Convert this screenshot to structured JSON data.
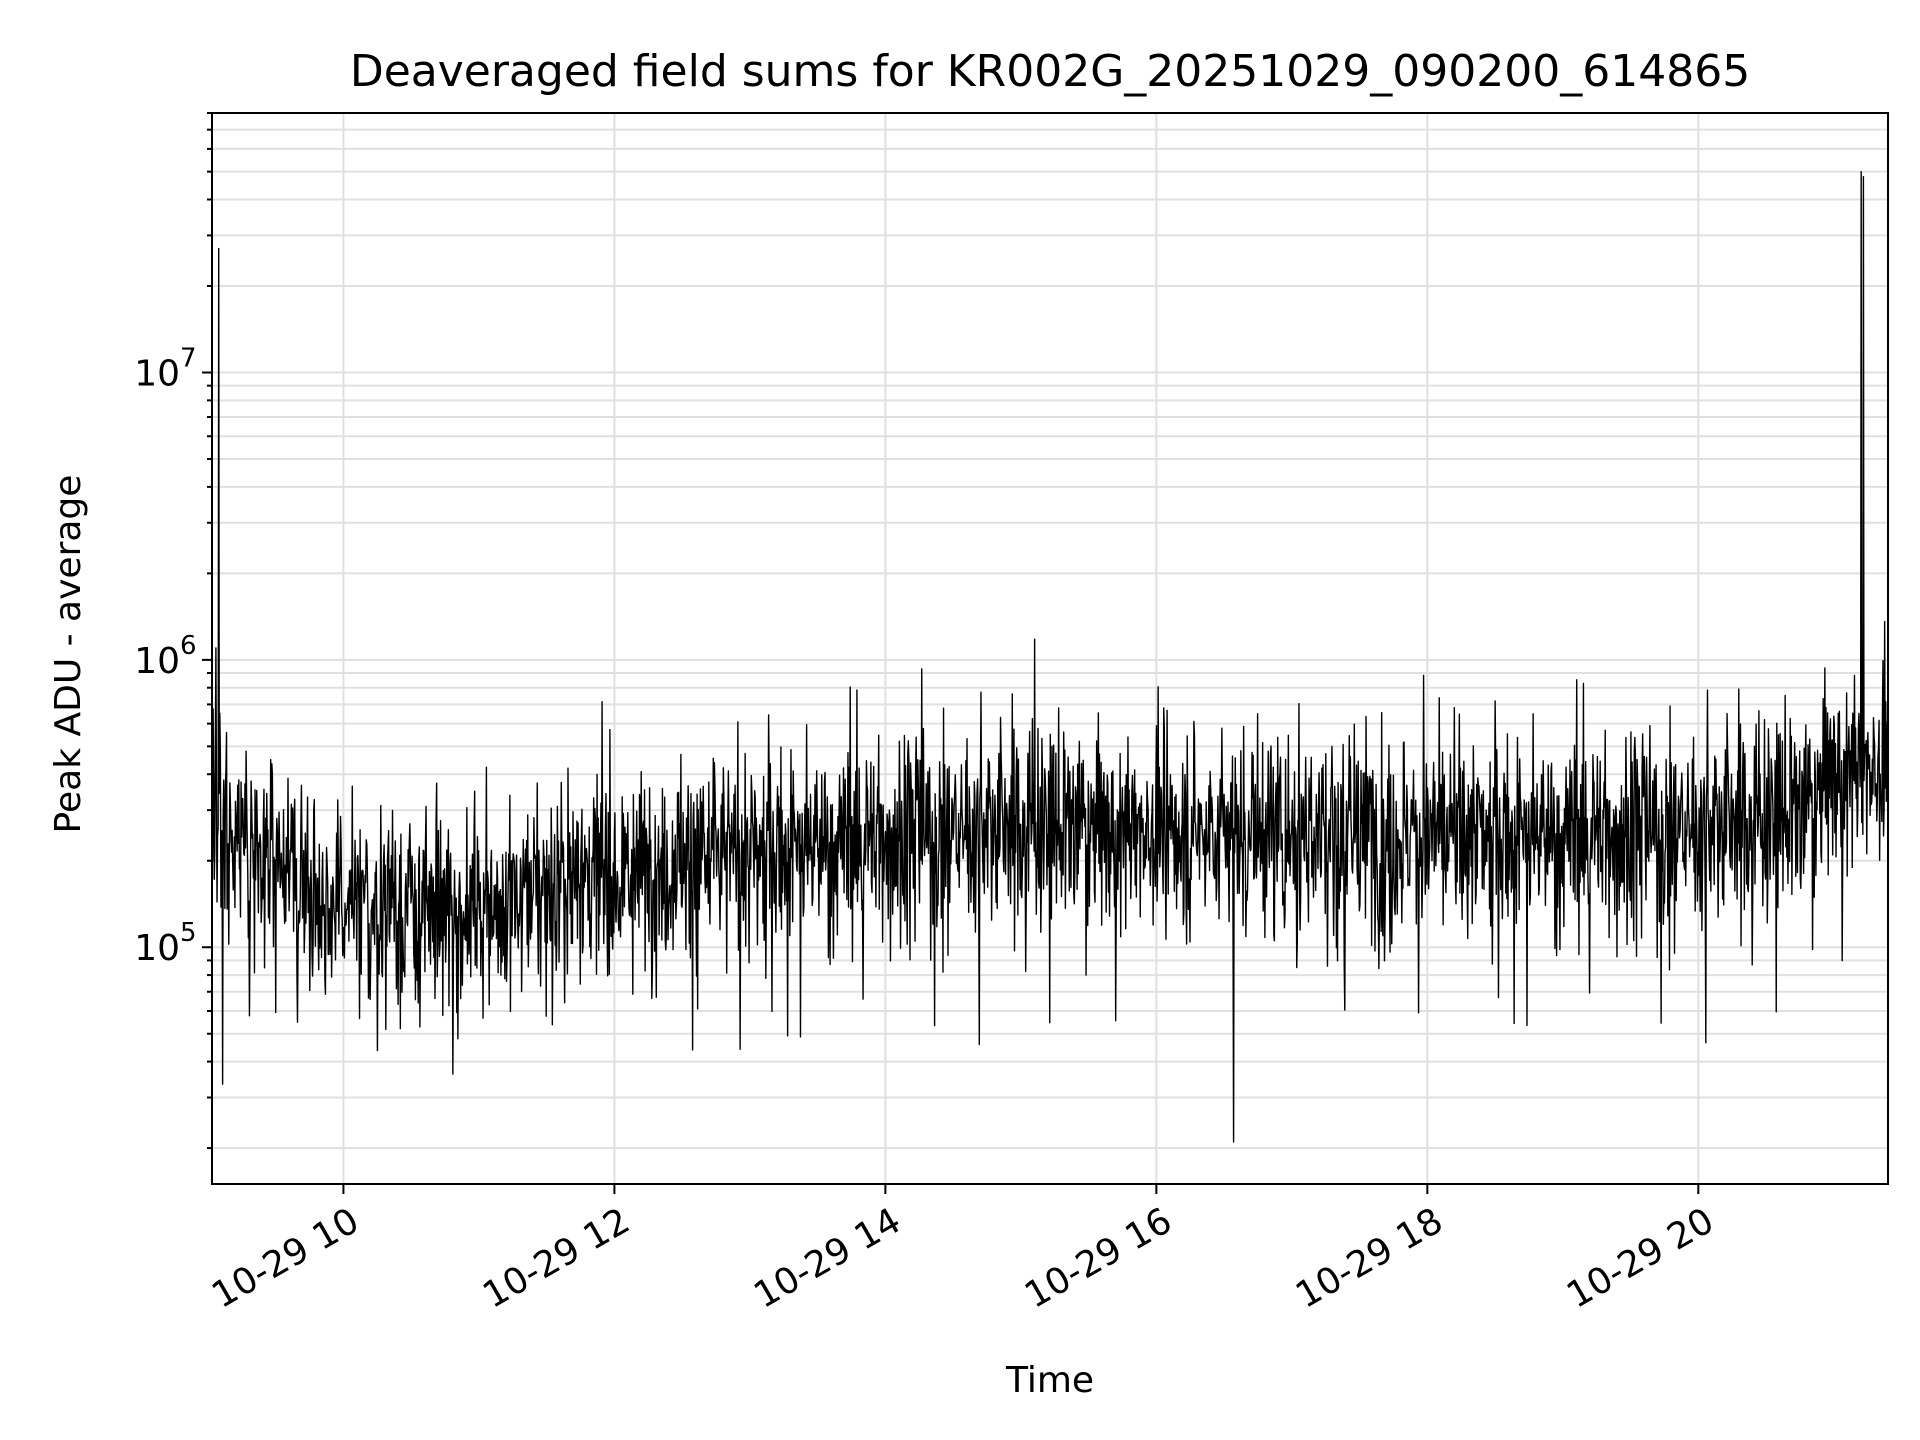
{
  "chart_data": {
    "type": "line",
    "title": "Deaveraged field sums for KR002G_20251029_090200_614865",
    "xlabel": "Time",
    "ylabel": "Peak ADU - average",
    "yscale": "log",
    "ylim": [
      15000,
      80000000
    ],
    "xlim_hours": [
      9.03,
      21.4
    ],
    "x_tick_labels": [
      "10-29 10",
      "10-29 12",
      "10-29 14",
      "10-29 16",
      "10-29 18",
      "10-29 20"
    ],
    "x_tick_hours": [
      10,
      12,
      14,
      16,
      18,
      20
    ],
    "y_tick_labels": [
      {
        "base": "10",
        "exp": "5",
        "value": 100000
      },
      {
        "base": "10",
        "exp": "6",
        "value": 1000000
      },
      {
        "base": "10",
        "exp": "7",
        "value": 10000000
      }
    ],
    "grid": true,
    "line_color": "#000000",
    "grid_color": "#e0e0e0",
    "series": [
      {
        "name": "field sums",
        "sample_count": 3000,
        "baseline_anchors": [
          {
            "hour": 9.03,
            "value": 280000
          },
          {
            "hour": 9.5,
            "value": 200000
          },
          {
            "hour": 10.0,
            "value": 130000
          },
          {
            "hour": 11.0,
            "value": 140000
          },
          {
            "hour": 12.0,
            "value": 185000
          },
          {
            "hour": 13.0,
            "value": 215000
          },
          {
            "hour": 14.0,
            "value": 245000
          },
          {
            "hour": 15.0,
            "value": 265000
          },
          {
            "hour": 16.0,
            "value": 260000
          },
          {
            "hour": 17.0,
            "value": 255000
          },
          {
            "hour": 18.0,
            "value": 240000
          },
          {
            "hour": 19.0,
            "value": 250000
          },
          {
            "hour": 20.0,
            "value": 260000
          },
          {
            "hour": 20.8,
            "value": 300000
          },
          {
            "hour": 21.0,
            "value": 420000
          },
          {
            "hour": 21.4,
            "value": 440000
          }
        ],
        "spikes": [
          {
            "hour": 9.08,
            "value": 27000000
          },
          {
            "hour": 9.06,
            "value": 1100000
          },
          {
            "hour": 15.1,
            "value": 1180000
          },
          {
            "hour": 14.27,
            "value": 930000
          },
          {
            "hour": 21.2,
            "value": 50000000
          },
          {
            "hour": 21.22,
            "value": 48000000
          },
          {
            "hour": 16.57,
            "value": 21000
          }
        ]
      }
    ]
  }
}
